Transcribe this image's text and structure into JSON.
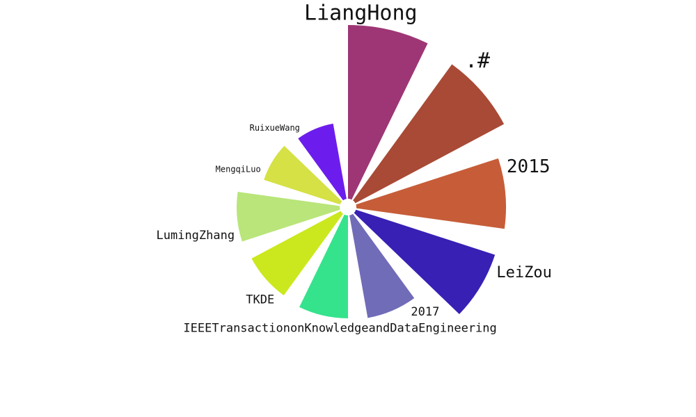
{
  "chart_data": {
    "type": "polar-bar",
    "title": "",
    "categories": [
      "LiangHong",
      ".#",
      "2015",
      "LeiZou",
      "2017",
      "IEEETransactiononKnowledgeandDataEngineering",
      "TKDE",
      "LumingZhang",
      "MengqiLuo",
      "RuixueWang"
    ],
    "values": [
      250,
      242,
      215,
      210,
      150,
      148,
      145,
      148,
      115,
      110
    ],
    "colors": [
      "#9e3675",
      "#a84a36",
      "#c65d38",
      "#3820b4",
      "#716cb8",
      "#35e38c",
      "#cbe81e",
      "#b9e57a",
      "#d5e145",
      "#6c1ded"
    ],
    "label_font_sizes": [
      30,
      30,
      26,
      22,
      17,
      17,
      17,
      17,
      12,
      12
    ]
  }
}
